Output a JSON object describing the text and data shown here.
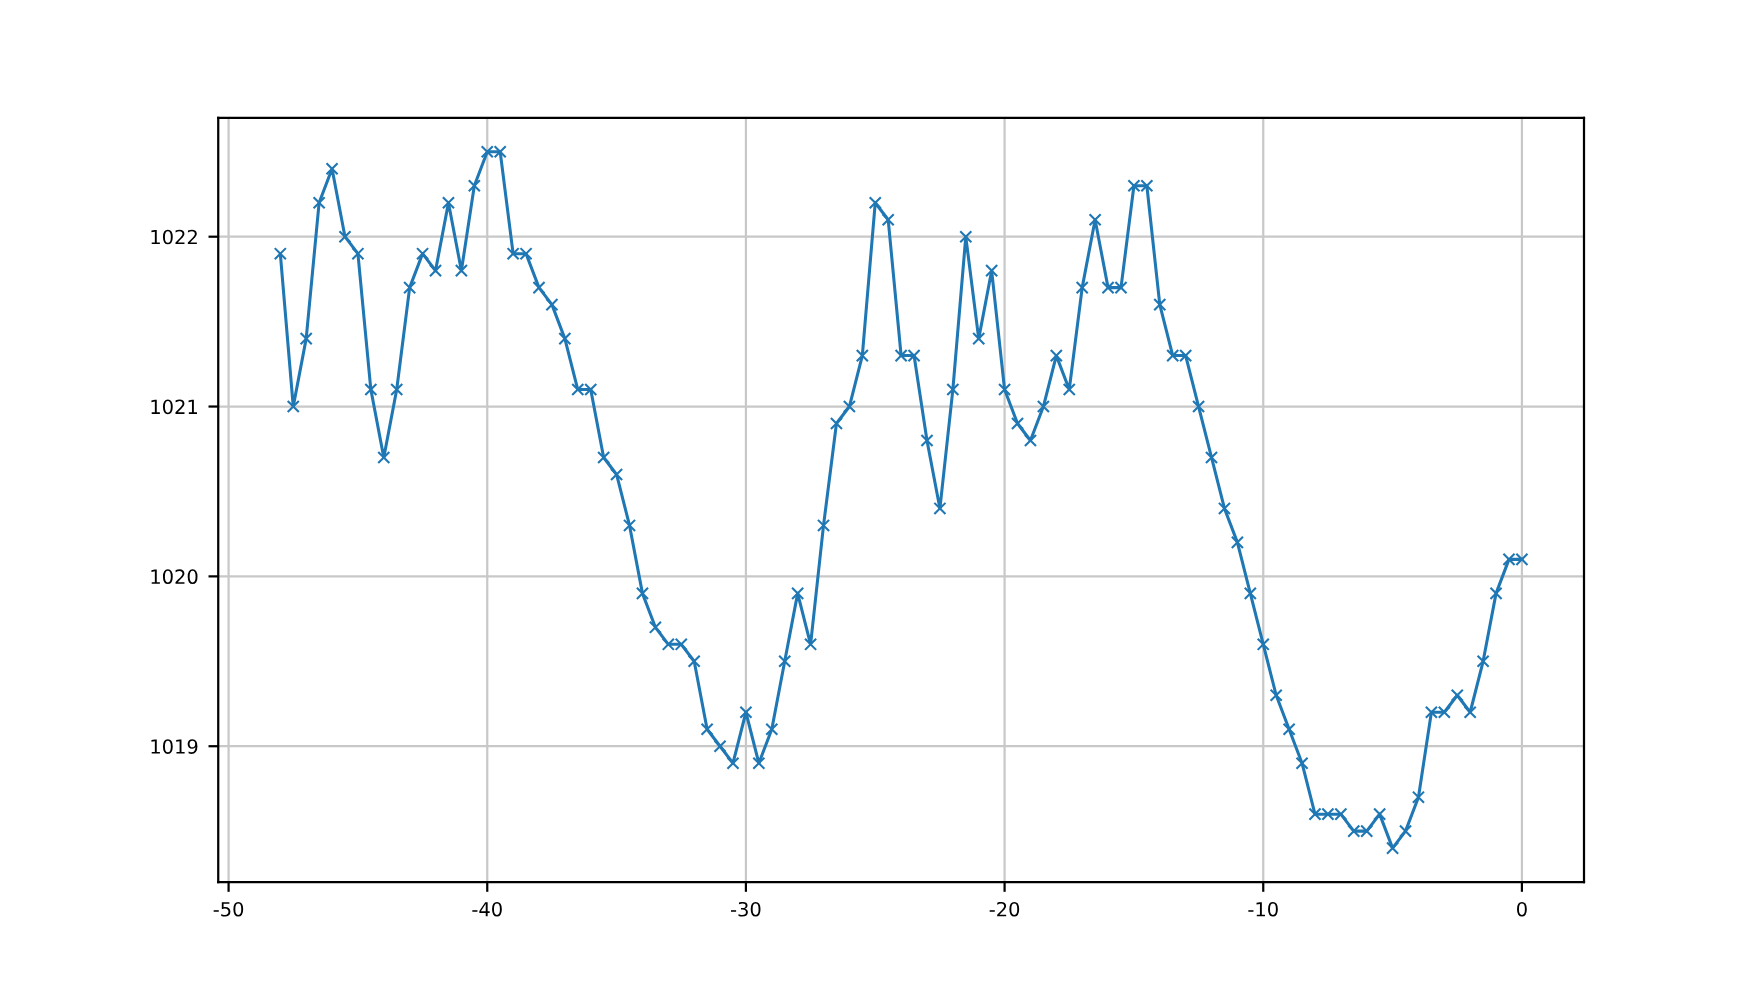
{
  "chart_data": {
    "type": "line",
    "x": [
      -48,
      -47.5,
      -47,
      -46.5,
      -46,
      -45.5,
      -45,
      -44.5,
      -44,
      -43.5,
      -43,
      -42.5,
      -42,
      -41.5,
      -41,
      -40.5,
      -40,
      -39.5,
      -39,
      -38.5,
      -38,
      -37.5,
      -37,
      -36.5,
      -36,
      -35.5,
      -35,
      -34.5,
      -34,
      -33.5,
      -33,
      -32.5,
      -32,
      -31.5,
      -31,
      -30.5,
      -30,
      -29.5,
      -29,
      -28.5,
      -28,
      -27.5,
      -27,
      -26.5,
      -26,
      -25.5,
      -25,
      -24.5,
      -24,
      -23.5,
      -23,
      -22.5,
      -22,
      -21.5,
      -21,
      -20.5,
      -20,
      -19.5,
      -19,
      -18.5,
      -18,
      -17.5,
      -17,
      -16.5,
      -16,
      -15.5,
      -15,
      -14.5,
      -14,
      -13.5,
      -13,
      -12.5,
      -12,
      -11.5,
      -11,
      -10.5,
      -10,
      -9.5,
      -9,
      -8.5,
      -8,
      -7.5,
      -7,
      -6.5,
      -6,
      -5.5,
      -5,
      -4.5,
      -4,
      -3.5,
      -3,
      -2.5,
      -2,
      -1.5,
      -1,
      -0.5,
      0
    ],
    "series": [
      {
        "color": "#1f77b4",
        "values": [
          1021.9,
          1021.0,
          1021.4,
          1022.2,
          1022.4,
          1022.0,
          1021.9,
          1021.1,
          1020.7,
          1021.1,
          1021.7,
          1021.9,
          1021.8,
          1022.2,
          1021.8,
          1022.3,
          1022.5,
          1022.5,
          1021.9,
          1021.9,
          1021.7,
          1021.6,
          1021.4,
          1021.1,
          1021.1,
          1020.7,
          1020.6,
          1020.3,
          1019.9,
          1019.7,
          1019.6,
          1019.6,
          1019.5,
          1019.1,
          1019.0,
          1018.9,
          1019.2,
          1018.9,
          1019.1,
          1019.5,
          1019.9,
          1019.6,
          1020.3,
          1020.9,
          1021.0,
          1021.3,
          1022.2,
          1022.1,
          1021.3,
          1021.3,
          1020.8,
          1020.4,
          1021.1,
          1022.0,
          1021.4,
          1021.8,
          1021.1,
          1020.9,
          1020.8,
          1021.0,
          1021.3,
          1021.1,
          1021.7,
          1022.1,
          1021.7,
          1021.7,
          1022.3,
          1022.3,
          1021.6,
          1021.3,
          1021.3,
          1021.0,
          1020.7,
          1020.4,
          1020.2,
          1019.9,
          1019.6,
          1019.3,
          1019.1,
          1018.9,
          1018.6,
          1018.6,
          1018.6,
          1018.5,
          1018.5,
          1018.6,
          1018.4,
          1018.5,
          1018.7,
          1019.2,
          1019.2,
          1019.3,
          1019.2,
          1019.5,
          1019.9,
          1020.1,
          1020.1
        ]
      }
    ],
    "xlim": [
      -50.4,
      2.4
    ],
    "ylim": [
      1018.2,
      1022.7
    ],
    "xticks": [
      -50,
      -40,
      -30,
      -20,
      -10,
      0
    ],
    "yticks": [
      1019,
      1020,
      1021,
      1022
    ],
    "grid": true,
    "marker": "cross",
    "line_style": "solid",
    "legend": false
  }
}
